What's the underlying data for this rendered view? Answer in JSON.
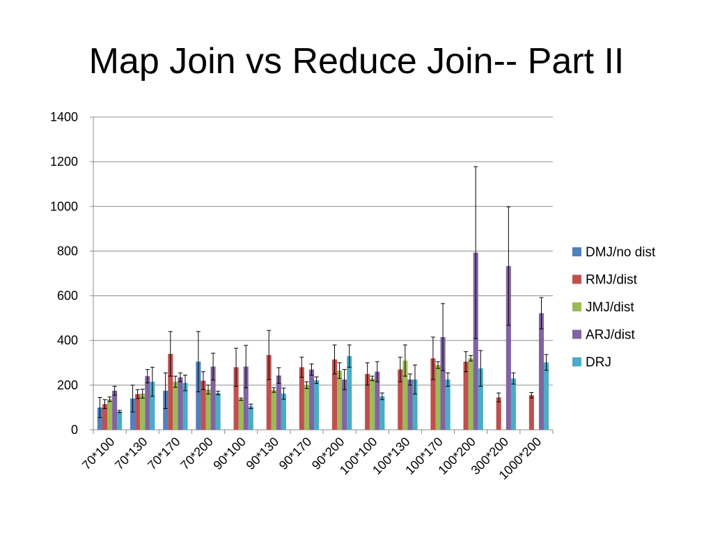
{
  "slide": {
    "title": "Map Join vs Reduce Join-- Part II"
  },
  "chart_data": {
    "type": "bar",
    "title": "",
    "xlabel": "",
    "ylabel": "",
    "ylim": [
      0,
      1400
    ],
    "yticks": [
      0,
      200,
      400,
      600,
      800,
      1000,
      1200,
      1400
    ],
    "grid": true,
    "legend_position": "right",
    "categories": [
      "70*100",
      "70*130",
      "70*170",
      "70*200",
      "90*100",
      "90*130",
      "90*170",
      "90*200",
      "100*100",
      "100*130",
      "100*170",
      "100*200",
      "300*200",
      "1000*200"
    ],
    "series": [
      {
        "name": "DMJ/no dist",
        "color": "#4F81BD",
        "values": [
          100,
          140,
          175,
          305,
          null,
          null,
          null,
          null,
          null,
          null,
          null,
          null,
          null,
          null
        ],
        "err": [
          45,
          60,
          80,
          135,
          null,
          null,
          null,
          null,
          null,
          null,
          null,
          null,
          null,
          null
        ]
      },
      {
        "name": "RMJ/dist",
        "color": "#C0504D",
        "values": [
          115,
          160,
          340,
          220,
          280,
          335,
          280,
          315,
          250,
          270,
          320,
          305,
          145,
          155
        ],
        "err": [
          20,
          20,
          100,
          40,
          85,
          110,
          45,
          65,
          50,
          55,
          95,
          45,
          20,
          12
        ]
      },
      {
        "name": "JMJ/dist",
        "color": "#9BBB59",
        "values": [
          137,
          162,
          215,
          180,
          137,
          178,
          200,
          265,
          230,
          310,
          290,
          320,
          null,
          null
        ],
        "err": [
          10,
          20,
          25,
          20,
          5,
          10,
          15,
          35,
          10,
          70,
          15,
          12,
          null,
          null
        ]
      },
      {
        "name": "ARJ/dist",
        "color": "#8064A2",
        "values": [
          175,
          240,
          235,
          283,
          283,
          243,
          270,
          225,
          260,
          225,
          415,
          793,
          733,
          522
        ],
        "err": [
          20,
          30,
          20,
          60,
          95,
          35,
          25,
          45,
          45,
          25,
          150,
          385,
          265,
          70
        ]
      },
      {
        "name": "DRJ",
        "color": "#4BACC6",
        "values": [
          82,
          215,
          210,
          165,
          105,
          162,
          222,
          330,
          150,
          225,
          225,
          275,
          230,
          302
        ],
        "err": [
          5,
          65,
          35,
          8,
          10,
          25,
          15,
          50,
          15,
          65,
          30,
          80,
          25,
          35
        ]
      }
    ]
  }
}
